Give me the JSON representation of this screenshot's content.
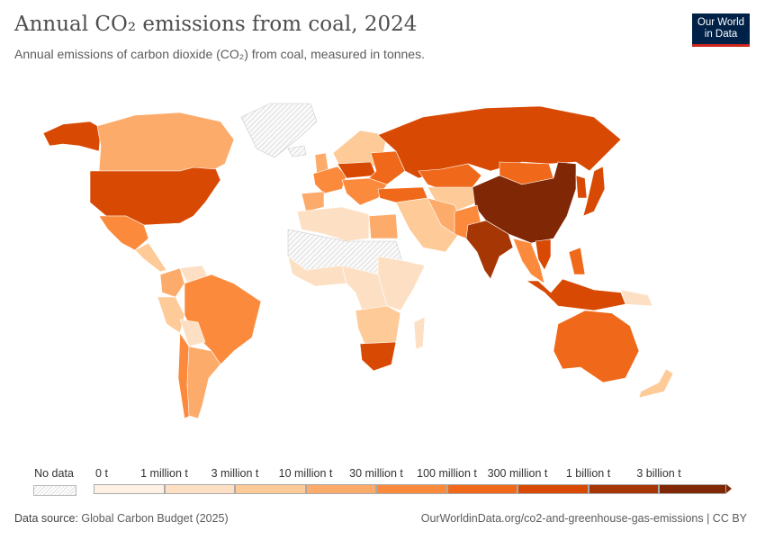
{
  "header": {
    "title": "Annual CO₂ emissions from coal, 2024",
    "subtitle": "Annual emissions of carbon dioxide (CO₂) from coal, measured in tonnes.",
    "logo": "Our World in Data"
  },
  "legend": {
    "no_data_label": "No data",
    "tick_labels": [
      "0 t",
      "1 million t",
      "3 million t",
      "10 million t",
      "30 million t",
      "100 million t",
      "300 million t",
      "1 billion t",
      "3 billion t"
    ],
    "bin_colors": [
      "#fef1e3",
      "#fde0c4",
      "#fdca98",
      "#fcab6b",
      "#fb8a3c",
      "#f0691a",
      "#d84a04",
      "#a73605",
      "#802806"
    ],
    "no_data_color": "#e8e8e8"
  },
  "map_bins": {
    "alaska": 6,
    "canada": 3,
    "usa": 6,
    "mexico": 4,
    "central-america": 2,
    "greenland": -1,
    "colombia": 3,
    "venezuela": 1,
    "peru": 2,
    "brazil": 4,
    "bolivia": 1,
    "chile": 4,
    "argentina": 3,
    "iceland": -1,
    "scandinavia": 2,
    "uk": 3,
    "western-europe": 4,
    "germany-poland": 6,
    "eastern-europe": 5,
    "iberia": 3,
    "italy-balkans": 4,
    "russia": 6,
    "kazakhstan": 5,
    "central-asia": 2,
    "turkey": 5,
    "middle-east": 2,
    "iran": 3,
    "egypt": 3,
    "north-africa": 1,
    "sahara": -1,
    "west-africa": 1,
    "central-africa": 1,
    "east-africa": 1,
    "southern-africa": 2,
    "south-africa": 6,
    "madagascar": 1,
    "mongolia": 5,
    "china": 8,
    "india": 7,
    "pakistan": 4,
    "southeast-asia": 4,
    "vietnam": 6,
    "korea": 6,
    "japan": 6,
    "indonesia": 6,
    "philippines": 5,
    "australia": 5,
    "new-zealand": 2,
    "papua": 1
  },
  "footer": {
    "source_label": "Data source:",
    "source": "Global Carbon Budget (2025)",
    "url": "OurWorldinData.org/co2-and-greenhouse-gas-emissions | CC BY"
  }
}
